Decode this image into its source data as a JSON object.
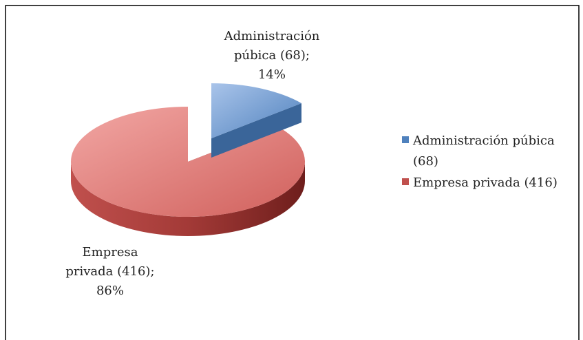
{
  "chart_data": {
    "type": "pie3d",
    "categories": [
      "Administración púbica (68)",
      "Empresa privada (416)"
    ],
    "values": [
      14,
      86
    ],
    "value_labels": [
      "Administración púbica (68); 14%",
      "Empresa privada (416); 86%"
    ],
    "colors": [
      "#4f81bd",
      "#c0504d"
    ],
    "legend": "right"
  }
}
